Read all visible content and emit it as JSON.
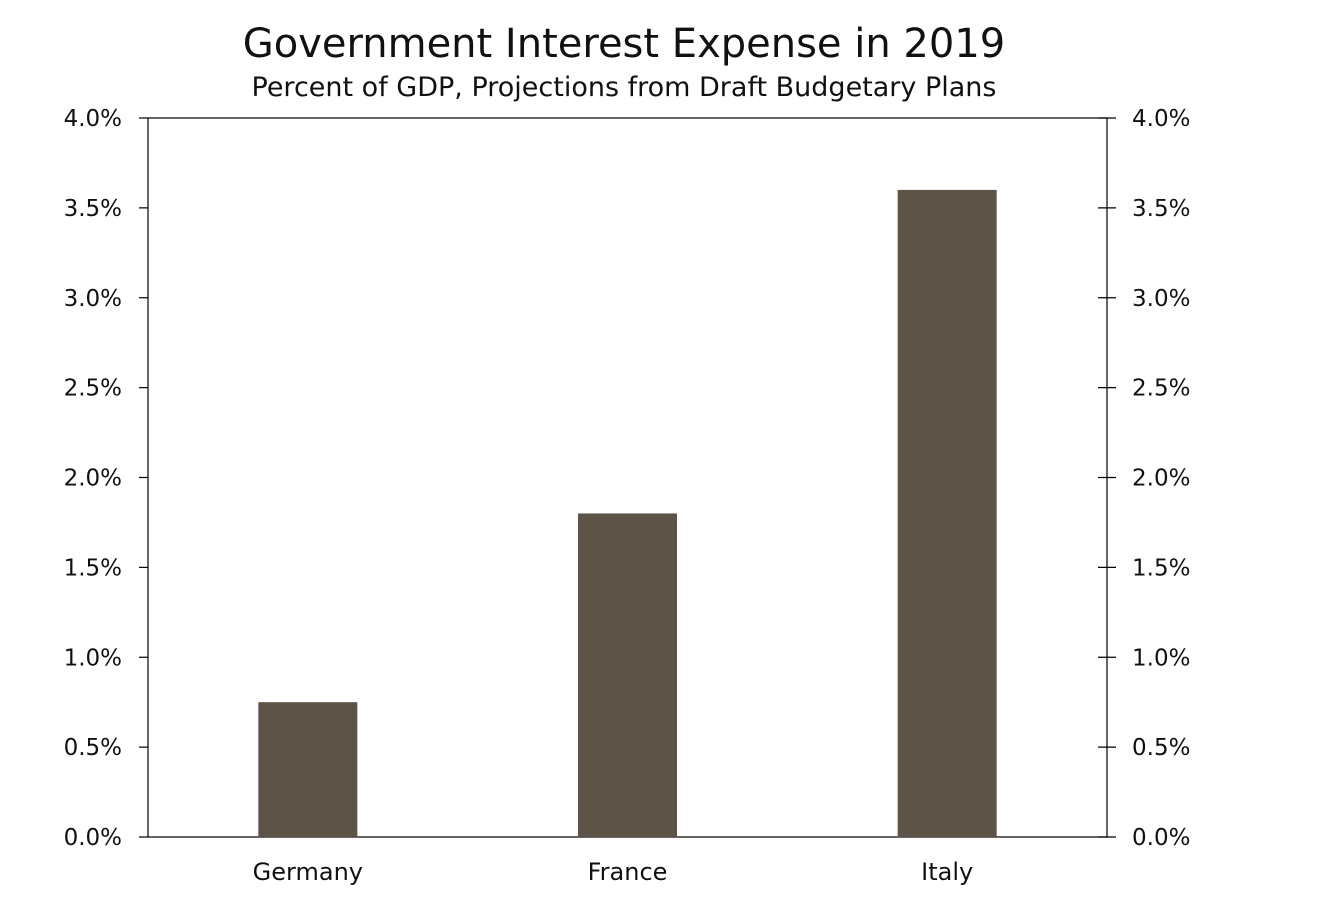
{
  "chart_data": {
    "type": "bar",
    "title": "Government Interest Expense in 2019",
    "subtitle": "Percent of GDP, Projections from Draft Budgetary Plans",
    "categories": [
      "Germany",
      "France",
      "Italy"
    ],
    "values": [
      0.75,
      1.8,
      3.6
    ],
    "xlabel": "",
    "ylabel": "",
    "ylim": [
      0,
      4.0
    ],
    "yticks": [
      0.0,
      0.5,
      1.0,
      1.5,
      2.0,
      2.5,
      3.0,
      3.5,
      4.0
    ],
    "tick_format": "percent_1dp",
    "dual_y_axis": true,
    "grid": false,
    "bar_color": "#5e5347"
  }
}
